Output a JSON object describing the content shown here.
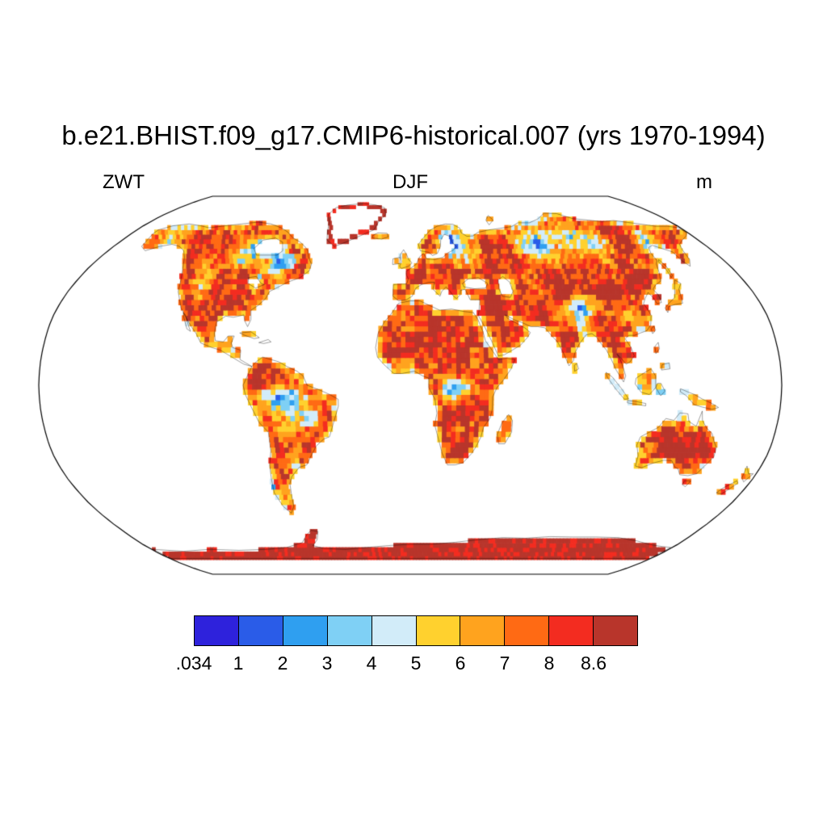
{
  "title": "b.e21.BHIST.f09_g17.CMIP6-historical.007 (yrs 1970-1994)",
  "subtitle": {
    "left": "ZWT",
    "center": "DJF",
    "right": "m"
  },
  "chart_data": {
    "type": "heatmap",
    "map_projection": "robinson",
    "case": "b.e21.BHIST.f09_g17.CMIP6-historical.007",
    "years": "1970-1994",
    "variable": "ZWT",
    "season": "DJF",
    "units": "m",
    "legend_position": "bottom",
    "levels": [
      0.034,
      1,
      2,
      3,
      4,
      5,
      6,
      7,
      8,
      8.6
    ],
    "colorbar_labels": [
      ".034",
      "1",
      "2",
      "3",
      "4",
      "5",
      "6",
      "7",
      "8",
      "8.6"
    ],
    "colors": [
      "#2e22dc",
      "#2a5ce8",
      "#2f9ff0",
      "#7fd0f5",
      "#d2ecf9",
      "#ffd12e",
      "#ffa31e",
      "#ff6a14",
      "#f32c20",
      "#b8352b"
    ]
  }
}
